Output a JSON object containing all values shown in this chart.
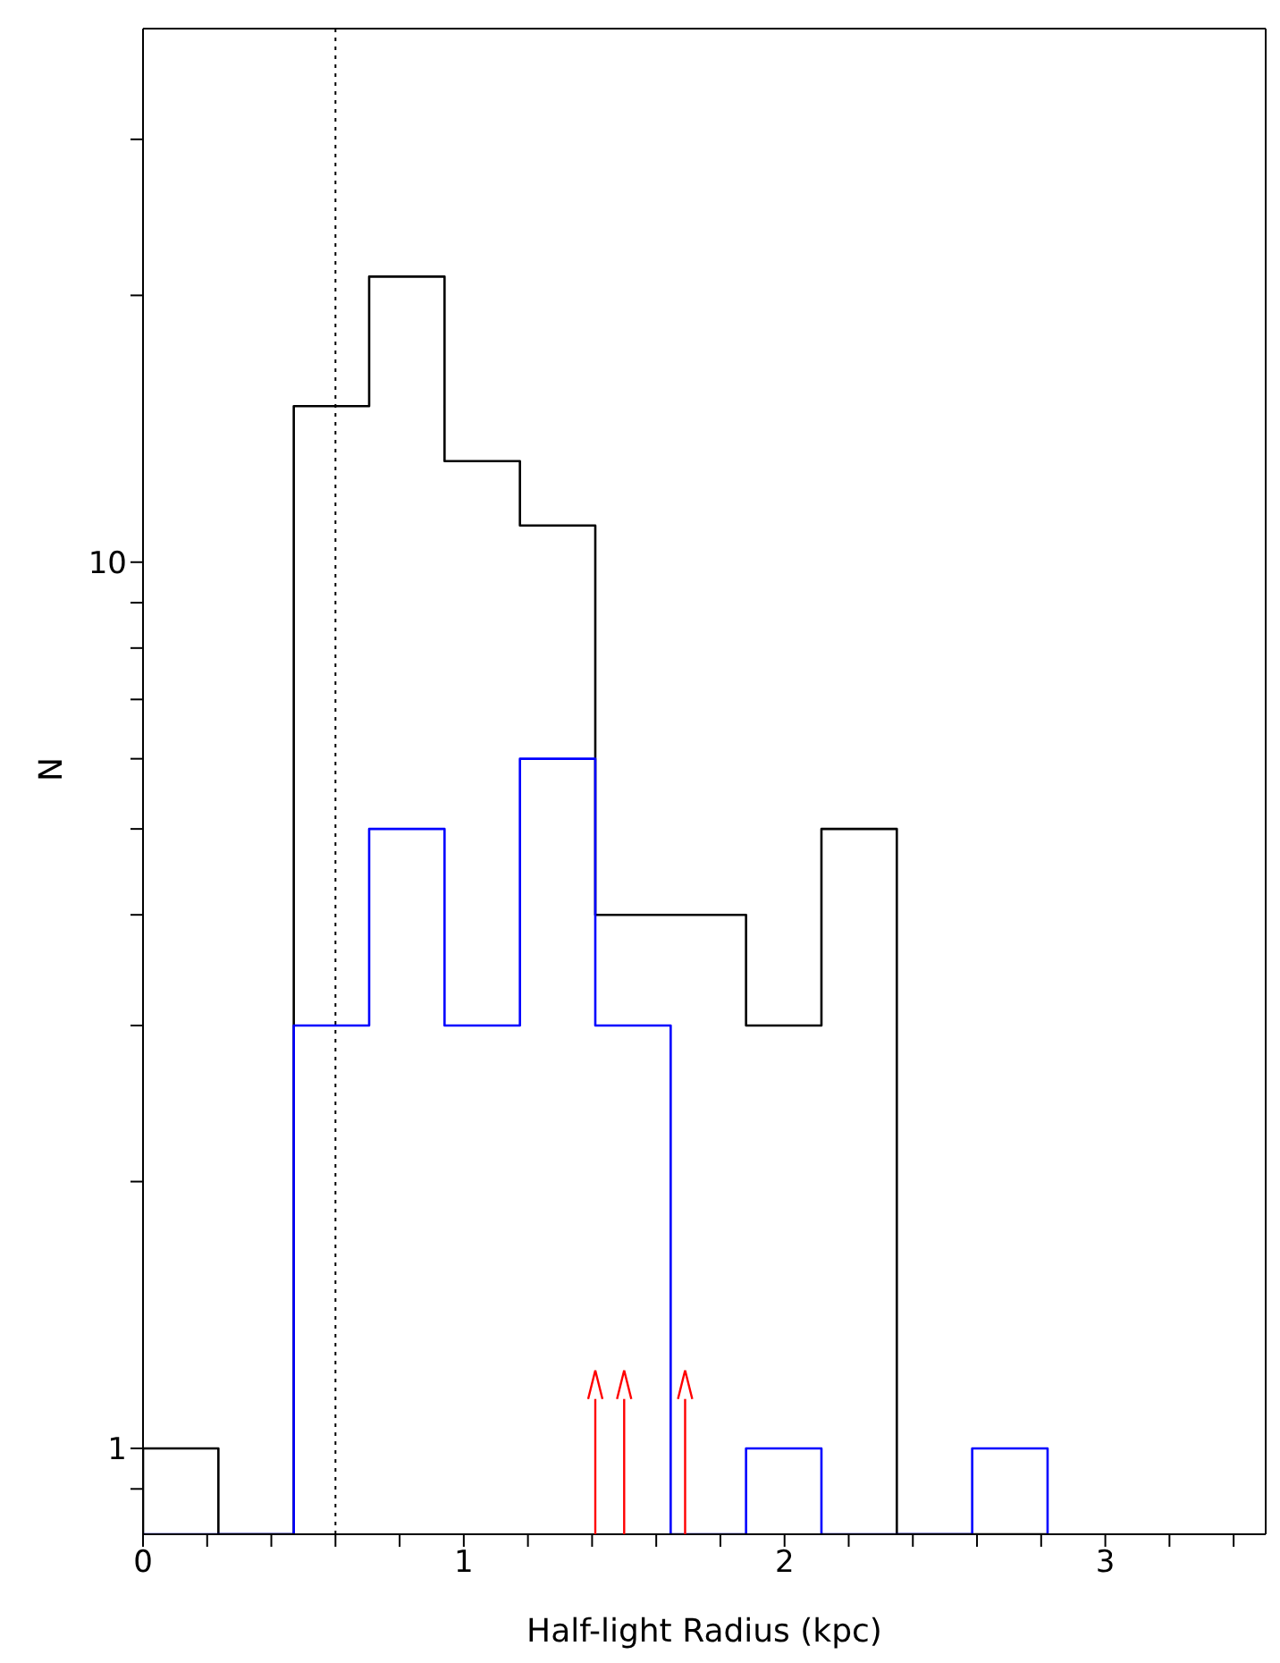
{
  "chart_data": {
    "type": "histogram",
    "xlabel": "Half-light Radius (kpc)",
    "ylabel": "N",
    "bins": [
      0,
      0.235,
      0.47,
      0.705,
      0.94,
      1.175,
      1.41,
      1.645,
      1.88,
      2.115,
      2.35,
      2.585,
      2.82
    ],
    "series": [
      {
        "color": "#000000",
        "values": [
          1,
          null,
          15,
          21,
          13,
          11,
          4,
          4,
          3,
          5,
          null,
          null
        ]
      },
      {
        "color": "#0000ff",
        "values": [
          null,
          null,
          3,
          5,
          3,
          6,
          3,
          null,
          1,
          null,
          null,
          1
        ]
      },
      {
        "type": "scatter",
        "color": "#ff0000",
        "x": [
          1.41,
          1.5,
          1.69
        ],
        "values": [
          1.18,
          1.18,
          1.18
        ]
      }
    ],
    "log": "y",
    "xlim": [
      0,
      3.5
    ],
    "ylim": [
      0.8,
      40
    ],
    "xticks": [
      0,
      {
        "value": 0.2,
        "label": null
      },
      {
        "value": 0.4,
        "label": null
      },
      {
        "value": 0.6,
        "label": null
      },
      {
        "value": 0.8,
        "label": null
      },
      1,
      {
        "value": 1.2,
        "label": null
      },
      {
        "value": 1.4,
        "label": null
      },
      {
        "value": 1.6,
        "label": null
      },
      {
        "value": 1.8,
        "label": null
      },
      2,
      {
        "value": 2.2,
        "label": null
      },
      {
        "value": 2.4,
        "label": null
      },
      {
        "value": 2.6,
        "label": null
      },
      {
        "value": 2.8,
        "label": null
      },
      3,
      {
        "value": 3.2,
        "label": null
      },
      {
        "value": 3.4,
        "label": null
      }
    ],
    "yticks": [
      {
        "value": 0.9,
        "label": null
      },
      1,
      {
        "value": 2,
        "label": null
      },
      {
        "value": 3,
        "label": null
      },
      {
        "value": 4,
        "label": null
      },
      {
        "value": 5,
        "label": null
      },
      {
        "value": 6,
        "label": null
      },
      {
        "value": 7,
        "label": null
      },
      {
        "value": 8,
        "label": null
      },
      {
        "value": 9,
        "label": null
      },
      10,
      {
        "value": 20,
        "label": null
      },
      {
        "value": 30,
        "label": null
      }
    ],
    "ref_lines": [
      {
        "axis": "x",
        "value": 0.6,
        "line_style": "dotted",
        "color": "#000000"
      }
    ]
  }
}
